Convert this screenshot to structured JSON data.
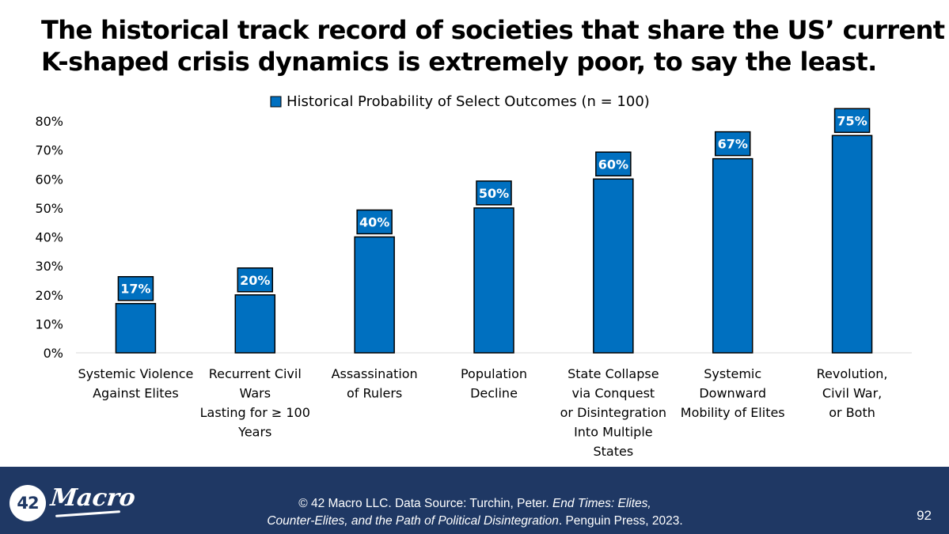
{
  "title_lines": [
    "The historical track record of societies that share the US’ current",
    "K-shaped crisis dynamics is extremely poor, to say the least."
  ],
  "chart_data": {
    "type": "bar",
    "title": "",
    "xlabel": "",
    "ylabel": "",
    "ylim": [
      0,
      80
    ],
    "y_ticks": [
      "0%",
      "10%",
      "20%",
      "30%",
      "40%",
      "50%",
      "60%",
      "70%",
      "80%"
    ],
    "y_tick_values": [
      0,
      10,
      20,
      30,
      40,
      50,
      60,
      70,
      80
    ],
    "grid": false,
    "legend_position": "top-center",
    "bar_color": "#0070c0",
    "categories": [
      [
        "Systemic Violence",
        "Against Elites"
      ],
      [
        "Recurrent Civil",
        "Wars",
        "Lasting for ≥ 100",
        "Years"
      ],
      [
        "Assassination",
        "of Rulers"
      ],
      [
        "Population",
        "Decline"
      ],
      [
        "State Collapse",
        "via Conquest",
        "or Disintegration",
        "Into Multiple",
        "States"
      ],
      [
        "Systemic",
        "Downward",
        "Mobility of Elites"
      ],
      [
        "Revolution,",
        "Civil War,",
        "or Both"
      ]
    ],
    "series": [
      {
        "name": "Historical Probability of Select Outcomes (n = 100)",
        "values": [
          17,
          20,
          40,
          50,
          60,
          67,
          75
        ],
        "labels": [
          "17%",
          "20%",
          "40%",
          "50%",
          "60%",
          "67%",
          "75%"
        ]
      }
    ]
  },
  "footer": {
    "logo_number": "42",
    "logo_word": "Macro",
    "source_line1_prefix": "© 42 Macro LLC. Data Source: Turchin, Peter. ",
    "source_line1_italic": "End Times: Elites,",
    "source_line2_italic": "Counter-Elites, and the Path of Political Disintegration",
    "source_line2_suffix": ". Penguin Press, 2023.",
    "page_number": "92",
    "background_color": "#1f3864"
  }
}
